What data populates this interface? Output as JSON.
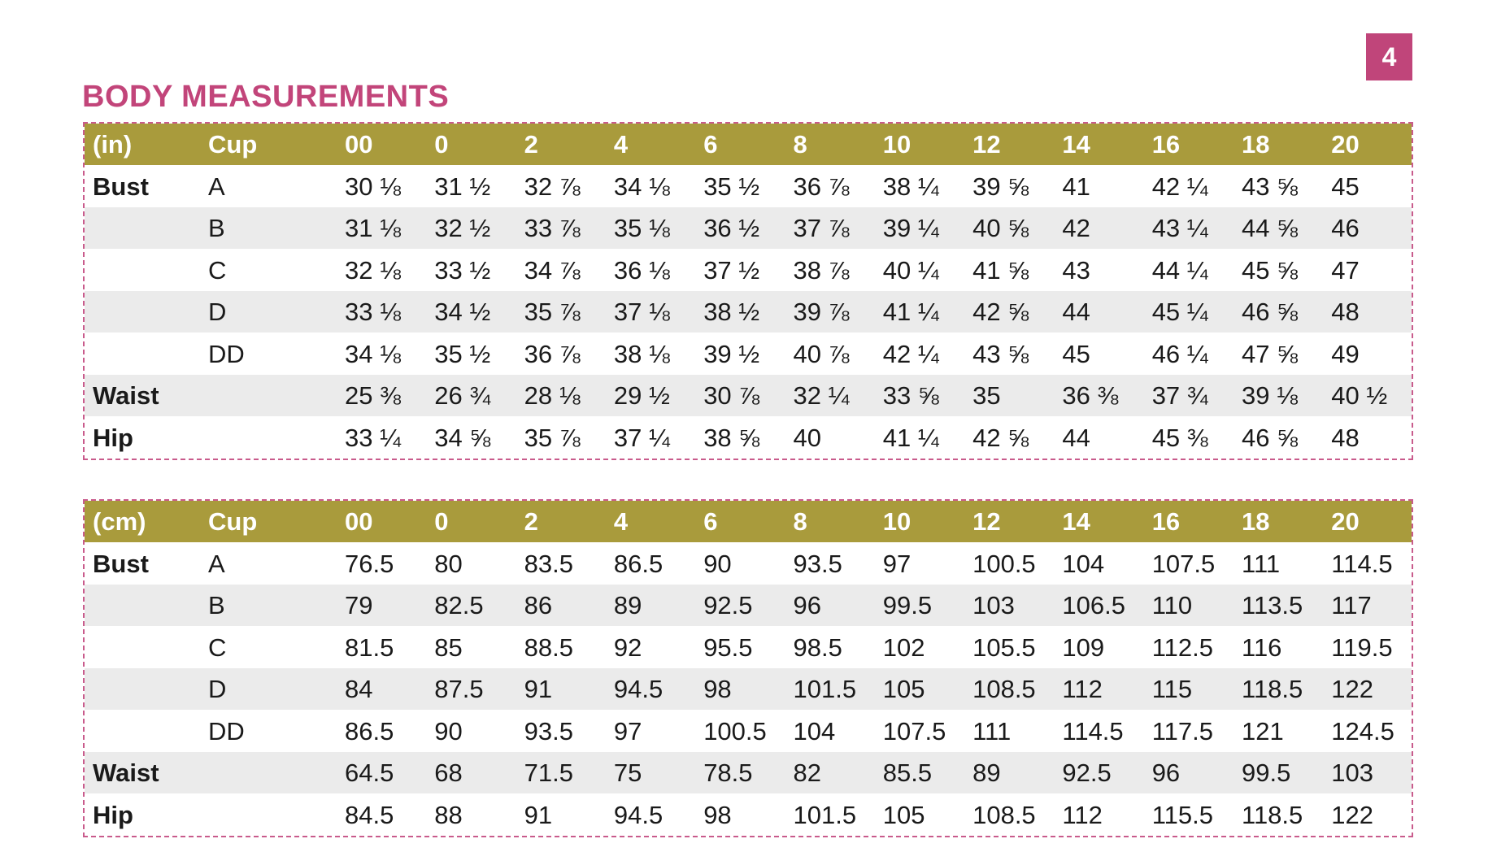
{
  "page_number": "4",
  "title": "BODY MEASUREMENTS",
  "tables": [
    {
      "header": [
        "(in)",
        "Cup",
        "00",
        "0",
        "2",
        "4",
        "6",
        "8",
        "10",
        "12",
        "14",
        "16",
        "18",
        "20"
      ],
      "rows": [
        {
          "label": "Bust",
          "cup": "A",
          "values": [
            "30 ⅛",
            "31 ½",
            "32 ⅞",
            "34 ⅛",
            "35 ½",
            "36 ⅞",
            "38 ¼",
            "39 ⅝",
            "41",
            "42 ¼",
            "43 ⅝",
            "45"
          ]
        },
        {
          "cup": "B",
          "values": [
            "31 ⅛",
            "32 ½",
            "33 ⅞",
            "35 ⅛",
            "36 ½",
            "37 ⅞",
            "39 ¼",
            "40 ⅝",
            "42",
            "43 ¼",
            "44 ⅝",
            "46"
          ]
        },
        {
          "cup": "C",
          "values": [
            "32 ⅛",
            "33 ½",
            "34 ⅞",
            "36 ⅛",
            "37 ½",
            "38 ⅞",
            "40 ¼",
            "41 ⅝",
            "43",
            "44 ¼",
            "45 ⅝",
            "47"
          ]
        },
        {
          "cup": "D",
          "values": [
            "33 ⅛",
            "34 ½",
            "35 ⅞",
            "37 ⅛",
            "38 ½",
            "39 ⅞",
            "41 ¼",
            "42 ⅝",
            "44",
            "45 ¼",
            "46 ⅝",
            "48"
          ]
        },
        {
          "cup": "DD",
          "values": [
            "34 ⅛",
            "35 ½",
            "36 ⅞",
            "38 ⅛",
            "39 ½",
            "40 ⅞",
            "42 ¼",
            "43 ⅝",
            "45",
            "46 ¼",
            "47 ⅝",
            "49"
          ]
        },
        {
          "label": "Waist",
          "values": [
            "25 ⅜",
            "26 ¾",
            "28 ⅛",
            "29 ½",
            "30 ⅞",
            "32 ¼",
            "33 ⅝",
            "35",
            "36 ⅜",
            "37 ¾",
            "39 ⅛",
            "40 ½"
          ]
        },
        {
          "label": "Hip",
          "values": [
            "33 ¼",
            "34 ⅝",
            "35 ⅞",
            "37 ¼",
            "38 ⅝",
            "40",
            "41 ¼",
            "42 ⅝",
            "44",
            "45 ⅜",
            "46 ⅝",
            "48"
          ]
        }
      ]
    },
    {
      "header": [
        "(cm)",
        "Cup",
        "00",
        "0",
        "2",
        "4",
        "6",
        "8",
        "10",
        "12",
        "14",
        "16",
        "18",
        "20"
      ],
      "rows": [
        {
          "label": "Bust",
          "cup": "A",
          "values": [
            76.5,
            80,
            83.5,
            86.5,
            90,
            93.5,
            97,
            100.5,
            104,
            107.5,
            111,
            114.5
          ]
        },
        {
          "cup": "B",
          "values": [
            79,
            82.5,
            86,
            89,
            92.5,
            96,
            99.5,
            103,
            106.5,
            110,
            113.5,
            117
          ]
        },
        {
          "cup": "C",
          "values": [
            81.5,
            85,
            88.5,
            92,
            95.5,
            98.5,
            102,
            105.5,
            109,
            112.5,
            116,
            119.5
          ]
        },
        {
          "cup": "D",
          "values": [
            84,
            87.5,
            91,
            94.5,
            98,
            101.5,
            105,
            108.5,
            112,
            115,
            118.5,
            122
          ]
        },
        {
          "cup": "DD",
          "values": [
            86.5,
            90,
            93.5,
            97,
            100.5,
            104,
            107.5,
            111,
            114.5,
            117.5,
            121,
            124.5
          ]
        },
        {
          "label": "Waist",
          "values": [
            64.5,
            68,
            71.5,
            75,
            78.5,
            82,
            85.5,
            89,
            92.5,
            96,
            99.5,
            103
          ]
        },
        {
          "label": "Hip",
          "values": [
            84.5,
            88,
            91,
            94.5,
            98,
            101.5,
            105,
            108.5,
            112,
            115.5,
            118.5,
            122
          ]
        }
      ]
    }
  ]
}
